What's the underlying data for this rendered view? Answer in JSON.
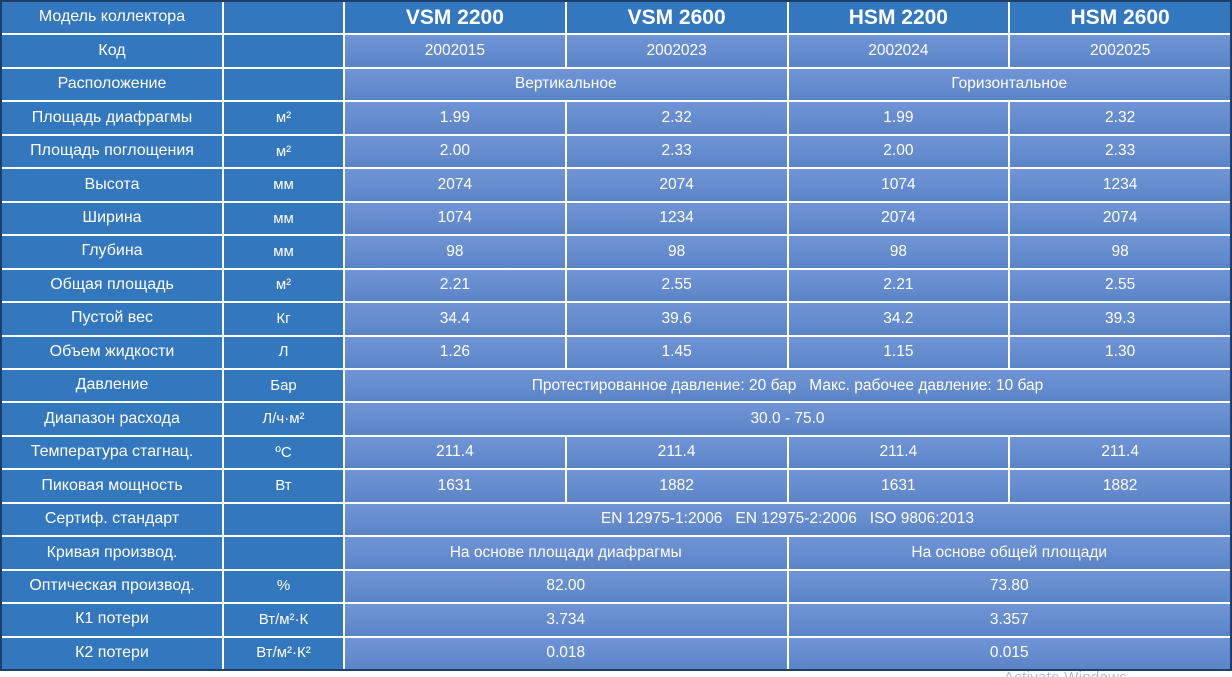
{
  "colors": {
    "header_blue": "#3377be",
    "value_blue": "#5b84c7",
    "value_blue_light": "#7095d6",
    "grid_white": "#ffffff",
    "border_navy": "#1e3f67",
    "text_white": "#ffffff"
  },
  "watermark": {
    "text": "Activate Windows"
  },
  "table": {
    "column_headers": [
      "VSM 2200",
      "VSM 2600",
      "HSM 2200",
      "HSM 2600"
    ],
    "rows": [
      {
        "cells": [
          {
            "kind": "label",
            "text": "Модель коллектора"
          },
          {
            "kind": "unit",
            "text": ""
          },
          {
            "kind": "head",
            "text": "VSM 2200"
          },
          {
            "kind": "head",
            "text": "VSM 2600"
          },
          {
            "kind": "head",
            "text": "HSM 2200"
          },
          {
            "kind": "head",
            "text": "HSM 2600"
          }
        ]
      },
      {
        "cells": [
          {
            "kind": "label",
            "text": "Код"
          },
          {
            "kind": "unit",
            "text": ""
          },
          {
            "kind": "value",
            "text": "2002015"
          },
          {
            "kind": "value",
            "text": "2002023"
          },
          {
            "kind": "value",
            "text": "2002024"
          },
          {
            "kind": "value",
            "text": "2002025"
          }
        ]
      },
      {
        "cells": [
          {
            "kind": "label",
            "text": "Расположение"
          },
          {
            "kind": "unit",
            "text": ""
          },
          {
            "kind": "value",
            "span": 2,
            "text": "Вертикальное"
          },
          {
            "kind": "value",
            "span": 2,
            "text": "Горизонтальное"
          }
        ]
      },
      {
        "cells": [
          {
            "kind": "label",
            "text": "Площадь диафрагмы"
          },
          {
            "kind": "unit",
            "text": "м²"
          },
          {
            "kind": "value",
            "text": "1.99"
          },
          {
            "kind": "value",
            "text": "2.32"
          },
          {
            "kind": "value",
            "text": "1.99"
          },
          {
            "kind": "value",
            "text": "2.32"
          }
        ]
      },
      {
        "cells": [
          {
            "kind": "label",
            "text": "Площадь поглощения"
          },
          {
            "kind": "unit",
            "text": "м²"
          },
          {
            "kind": "value",
            "text": "2.00"
          },
          {
            "kind": "value",
            "text": "2.33"
          },
          {
            "kind": "value",
            "text": "2.00"
          },
          {
            "kind": "value",
            "text": "2.33"
          }
        ]
      },
      {
        "cells": [
          {
            "kind": "label",
            "text": "Высота"
          },
          {
            "kind": "unit",
            "text": "мм"
          },
          {
            "kind": "value",
            "text": "2074"
          },
          {
            "kind": "value",
            "text": "2074"
          },
          {
            "kind": "value",
            "text": "1074"
          },
          {
            "kind": "value",
            "text": "1234"
          }
        ]
      },
      {
        "cells": [
          {
            "kind": "label",
            "text": "Ширина"
          },
          {
            "kind": "unit",
            "text": "мм"
          },
          {
            "kind": "value",
            "text": "1074"
          },
          {
            "kind": "value",
            "text": "1234"
          },
          {
            "kind": "value",
            "text": "2074"
          },
          {
            "kind": "value",
            "text": "2074"
          }
        ]
      },
      {
        "cells": [
          {
            "kind": "label",
            "text": "Глубина"
          },
          {
            "kind": "unit",
            "text": "мм"
          },
          {
            "kind": "value",
            "text": "98"
          },
          {
            "kind": "value",
            "text": "98"
          },
          {
            "kind": "value",
            "text": "98"
          },
          {
            "kind": "value",
            "text": "98"
          }
        ]
      },
      {
        "cells": [
          {
            "kind": "label",
            "text": "Общая площадь"
          },
          {
            "kind": "unit",
            "text": "м²"
          },
          {
            "kind": "value",
            "text": "2.21"
          },
          {
            "kind": "value",
            "text": "2.55"
          },
          {
            "kind": "value",
            "text": "2.21"
          },
          {
            "kind": "value",
            "text": "2.55"
          }
        ]
      },
      {
        "cells": [
          {
            "kind": "label",
            "text": "Пустой вес"
          },
          {
            "kind": "unit",
            "text": "Кг"
          },
          {
            "kind": "value",
            "text": "34.4"
          },
          {
            "kind": "value",
            "text": "39.6"
          },
          {
            "kind": "value",
            "text": "34.2"
          },
          {
            "kind": "value",
            "text": "39.3"
          }
        ]
      },
      {
        "cells": [
          {
            "kind": "label",
            "text": "Объем жидкости"
          },
          {
            "kind": "unit",
            "text": "Л"
          },
          {
            "kind": "value",
            "text": "1.26"
          },
          {
            "kind": "value",
            "text": "1.45"
          },
          {
            "kind": "value",
            "text": "1.15"
          },
          {
            "kind": "value",
            "text": "1.30"
          }
        ]
      },
      {
        "cells": [
          {
            "kind": "label",
            "text": "Давление"
          },
          {
            "kind": "unit",
            "text": "Бар"
          },
          {
            "kind": "value",
            "span": 4,
            "text": "Протестированное давление: 20 бар   Макс. рабочее давление: 10 бар"
          }
        ]
      },
      {
        "cells": [
          {
            "kind": "label",
            "text": "Диапазон расхода"
          },
          {
            "kind": "unit",
            "text": "Л/ч·м²"
          },
          {
            "kind": "value",
            "span": 4,
            "text": "30.0 - 75.0"
          }
        ]
      },
      {
        "cells": [
          {
            "kind": "label",
            "text": "Температура стагнац."
          },
          {
            "kind": "unit",
            "text": "ºC"
          },
          {
            "kind": "value",
            "text": "211.4"
          },
          {
            "kind": "value",
            "text": "211.4"
          },
          {
            "kind": "value",
            "text": "211.4"
          },
          {
            "kind": "value",
            "text": "211.4"
          }
        ]
      },
      {
        "cells": [
          {
            "kind": "label",
            "text": "Пиковая мощность"
          },
          {
            "kind": "unit",
            "text": "Вт"
          },
          {
            "kind": "value",
            "text": "1631"
          },
          {
            "kind": "value",
            "text": "1882"
          },
          {
            "kind": "value",
            "text": "1631"
          },
          {
            "kind": "value",
            "text": "1882"
          }
        ]
      },
      {
        "cells": [
          {
            "kind": "label",
            "text": "Сертиф. стандарт"
          },
          {
            "kind": "unit",
            "text": ""
          },
          {
            "kind": "value",
            "span": 4,
            "text": "EN 12975-1:2006   EN 12975-2:2006   ISO 9806:2013"
          }
        ]
      },
      {
        "cells": [
          {
            "kind": "label",
            "text": "Кривая производ."
          },
          {
            "kind": "unit",
            "text": ""
          },
          {
            "kind": "value",
            "span": 2,
            "text": "На основе площади диафрагмы"
          },
          {
            "kind": "value",
            "span": 2,
            "text": "На основе общей площади"
          }
        ]
      },
      {
        "cells": [
          {
            "kind": "label",
            "text": "Оптическая производ."
          },
          {
            "kind": "unit",
            "text": "%"
          },
          {
            "kind": "value",
            "span": 2,
            "text": "82.00"
          },
          {
            "kind": "value",
            "span": 2,
            "text": "73.80"
          }
        ]
      },
      {
        "cells": [
          {
            "kind": "label",
            "text": "К1 потери"
          },
          {
            "kind": "unit",
            "text": "Вт/м²·К"
          },
          {
            "kind": "value",
            "span": 2,
            "text": "3.734"
          },
          {
            "kind": "value",
            "span": 2,
            "text": "3.357"
          }
        ]
      },
      {
        "cells": [
          {
            "kind": "label",
            "text": "К2 потери"
          },
          {
            "kind": "unit",
            "text": "Вт/м²·К²"
          },
          {
            "kind": "value",
            "span": 2,
            "text": "0.018"
          },
          {
            "kind": "value",
            "span": 2,
            "text": "0.015"
          }
        ]
      }
    ]
  }
}
